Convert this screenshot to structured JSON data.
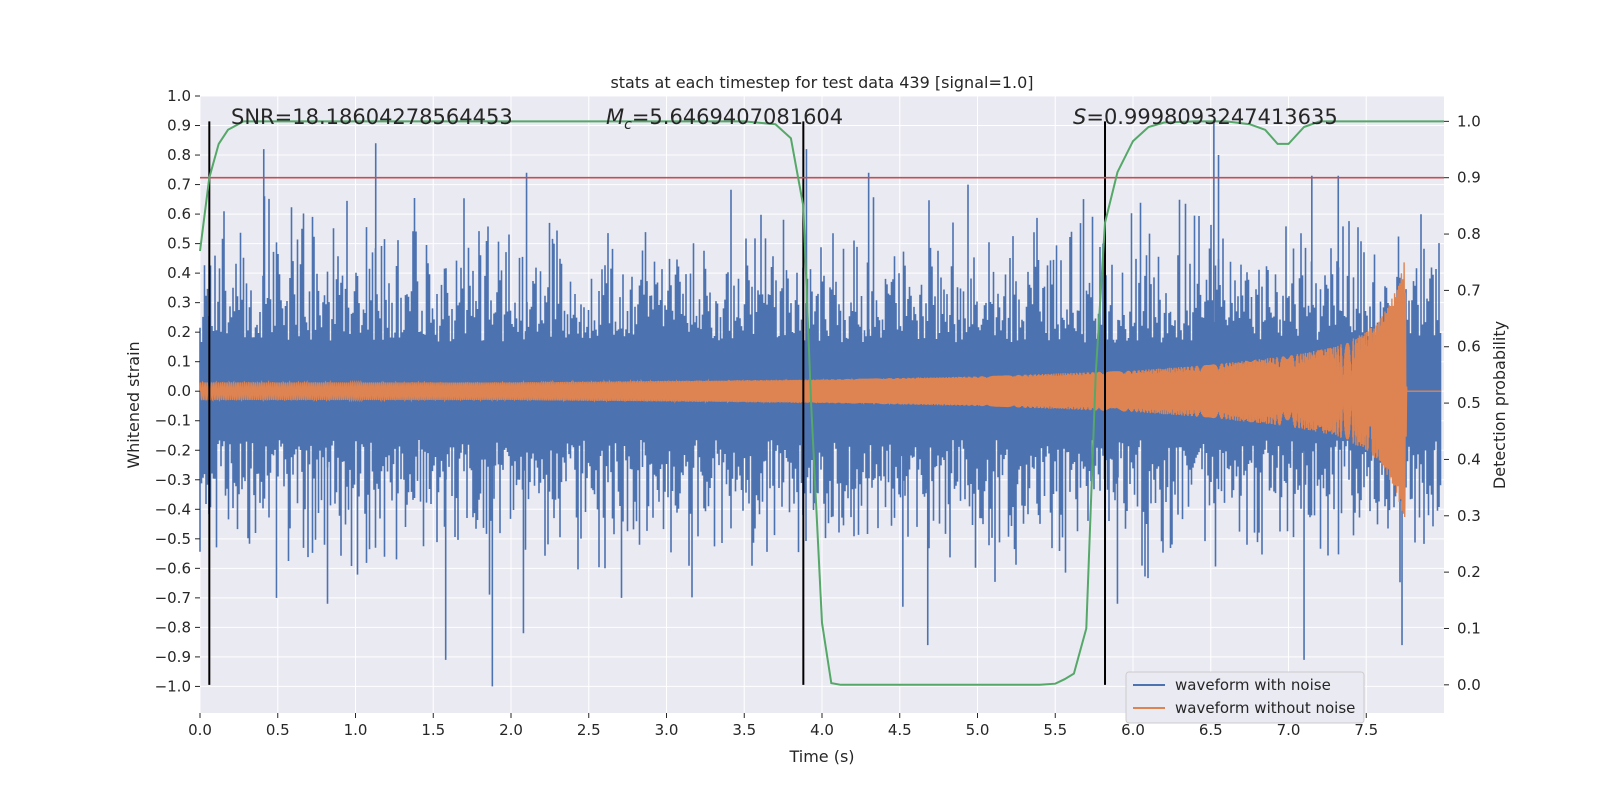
{
  "chart_data": {
    "type": "line",
    "title": "stats at each timestep for test data 439 [signal=1.0]",
    "xlabel": "Time (s)",
    "ylabel_left": "Whitened strain",
    "ylabel_right": "Detection probability",
    "xlim": [
      0.0,
      8.0
    ],
    "ylim_left": [
      -1.09,
      1.0
    ],
    "ylim_right": [
      -0.05,
      1.045
    ],
    "x_ticks": [
      0.0,
      0.5,
      1.0,
      1.5,
      2.0,
      2.5,
      3.0,
      3.5,
      4.0,
      4.5,
      5.0,
      5.5,
      6.0,
      6.5,
      7.0,
      7.5
    ],
    "x_tick_labels": [
      "0.0",
      "0.5",
      "1.0",
      "1.5",
      "2.0",
      "2.5",
      "3.0",
      "3.5",
      "4.0",
      "4.5",
      "5.0",
      "5.5",
      "6.0",
      "6.5",
      "7.0",
      "7.5"
    ],
    "y_left_ticks": [
      1.0,
      0.9,
      0.8,
      0.7,
      0.6,
      0.5,
      0.4,
      0.3,
      0.2,
      0.1,
      0.0,
      -0.1,
      -0.2,
      -0.3,
      -0.4,
      -0.5,
      -0.6,
      -0.7,
      -0.8,
      -0.9,
      -1.0
    ],
    "y_left_tick_labels": [
      "1.0",
      "0.9",
      "0.8",
      "0.7",
      "0.6",
      "0.5",
      "0.4",
      "0.3",
      "0.2",
      "0.1",
      "0.0",
      "−0.1",
      "−0.2",
      "−0.3",
      "−0.4",
      "−0.5",
      "−0.6",
      "−0.7",
      "−0.8",
      "−0.9",
      "−1.0"
    ],
    "y_right_ticks": [
      1.0,
      0.9,
      0.8,
      0.7,
      0.6,
      0.5,
      0.4,
      0.3,
      0.2,
      0.1,
      0.0
    ],
    "y_right_tick_labels": [
      "1.0",
      "0.9",
      "0.8",
      "0.7",
      "0.6",
      "0.5",
      "0.4",
      "0.3",
      "0.2",
      "0.1",
      "0.0"
    ],
    "annotations": [
      {
        "label": "snr",
        "text": "SNR=18.18604278564453"
      },
      {
        "label": "chirp-mass",
        "text_main": "M",
        "text_sub": "c",
        "text_rest": "=5.6469407081604"
      },
      {
        "label": "score",
        "text_main": "S",
        "text_rest": "=0.9998093247413635"
      }
    ],
    "vertical_markers": [
      0.06,
      3.88,
      5.82
    ],
    "threshold": 0.9,
    "series": [
      {
        "name": "waveform with noise",
        "color": "#4c72b0",
        "envelope": {
          "x": [
            0.0,
            1.0,
            2.0,
            3.0,
            4.0,
            5.0,
            6.0,
            6.5,
            7.0,
            7.5,
            7.8
          ],
          "amplitude": [
            0.3,
            0.3,
            0.3,
            0.3,
            0.3,
            0.3,
            0.3,
            0.3,
            0.3,
            0.3,
            0.3
          ]
        },
        "spikes": [
          {
            "x": 0.41,
            "y": 0.82
          },
          {
            "x": 1.13,
            "y": 0.84
          },
          {
            "x": 2.1,
            "y": 0.74
          },
          {
            "x": 3.9,
            "y": 0.82
          },
          {
            "x": 4.3,
            "y": 0.74
          },
          {
            "x": 6.52,
            "y": 0.92
          },
          {
            "x": 6.55,
            "y": 0.8
          },
          {
            "x": 7.15,
            "y": 0.73
          },
          {
            "x": 7.32,
            "y": 0.73
          },
          {
            "x": 1.58,
            "y": -0.91
          },
          {
            "x": 1.88,
            "y": -1.0
          },
          {
            "x": 2.08,
            "y": -0.82
          },
          {
            "x": 0.82,
            "y": -0.72
          },
          {
            "x": 4.68,
            "y": -0.86
          },
          {
            "x": 7.1,
            "y": -0.91
          },
          {
            "x": 7.73,
            "y": -0.86
          },
          {
            "x": 4.52,
            "y": -0.73
          },
          {
            "x": 5.9,
            "y": -0.72
          }
        ]
      },
      {
        "name": "waveform without noise",
        "color": "#dd8452",
        "amplitude": {
          "x": [
            0.0,
            1.0,
            2.0,
            3.0,
            4.0,
            5.0,
            6.0,
            6.5,
            7.0,
            7.3,
            7.5,
            7.6,
            7.7,
            7.75,
            7.76,
            8.0
          ],
          "y": [
            0.03,
            0.03,
            0.03,
            0.035,
            0.04,
            0.05,
            0.07,
            0.09,
            0.12,
            0.15,
            0.2,
            0.25,
            0.35,
            0.45,
            0.0,
            0.0
          ]
        },
        "merger_time": 7.76
      },
      {
        "name": "detection probability",
        "color": "#55a868",
        "x": [
          0.0,
          0.06,
          0.12,
          0.18,
          0.28,
          0.4,
          0.6,
          3.5,
          3.7,
          3.8,
          3.88,
          3.93,
          4.0,
          4.06,
          4.12,
          4.2,
          5.4,
          5.5,
          5.56,
          5.62,
          5.7,
          5.76,
          5.82,
          5.9,
          6.0,
          6.1,
          6.2,
          6.4,
          6.6,
          6.75,
          6.85,
          6.93,
          7.0,
          7.1,
          7.2,
          8.0
        ],
        "y": [
          0.77,
          0.9,
          0.96,
          0.985,
          1.0,
          1.0,
          1.0,
          1.0,
          0.995,
          0.97,
          0.85,
          0.5,
          0.11,
          0.003,
          0.0,
          0.0,
          0.0,
          0.002,
          0.01,
          0.02,
          0.1,
          0.55,
          0.82,
          0.91,
          0.965,
          0.99,
          0.998,
          1.0,
          1.0,
          0.995,
          0.985,
          0.96,
          0.96,
          0.99,
          1.0,
          1.0
        ]
      }
    ],
    "legend": {
      "placement": "lower-right",
      "entries": [
        "waveform with noise",
        "waveform without noise"
      ]
    }
  }
}
